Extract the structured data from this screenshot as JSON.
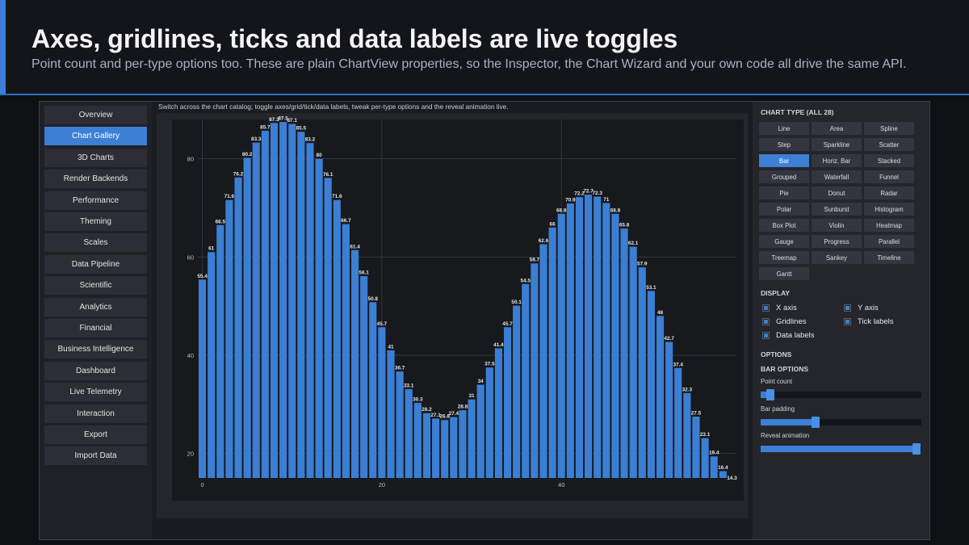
{
  "header": {
    "title": "Axes, gridlines, ticks and data labels are live toggles",
    "subtitle": "Point count and per-type options too. These are plain ChartView properties, so the Inspector, the Chart Wizard and your own code all drive the same API."
  },
  "nav": {
    "items": [
      "Overview",
      "Chart Gallery",
      "3D Charts",
      "Render Backends",
      "Performance",
      "Theming",
      "Scales",
      "Data Pipeline",
      "Scientific",
      "Analytics",
      "Financial",
      "Business Intelligence",
      "Dashboard",
      "Live Telemetry",
      "Interaction",
      "Export",
      "Import Data"
    ],
    "active_index": 1
  },
  "main": {
    "description": "Switch across the chart catalog; toggle axes/grid/tick/data labels, tweak per-type options and the reveal animation live."
  },
  "panel": {
    "chart_type_title": "CHART TYPE (ALL 28)",
    "chart_types": [
      "Line",
      "Area",
      "Spline",
      "Step",
      "Sparkline",
      "Scatter",
      "Bar",
      "Horiz. Bar",
      "Stacked",
      "Grouped",
      "Waterfall",
      "Funnel",
      "Pie",
      "Donut",
      "Radar",
      "Polar",
      "Sunburst",
      "Histogram",
      "Box Plot",
      "Violin",
      "Heatmap",
      "Gauge",
      "Progress",
      "Parallel",
      "Treemap",
      "Sankey",
      "Timeline",
      "Gantt"
    ],
    "active_type": "Bar",
    "display_title": "DISPLAY",
    "display": [
      {
        "label": "X axis",
        "checked": true
      },
      {
        "label": "Y axis",
        "checked": true
      },
      {
        "label": "Gridlines",
        "checked": true
      },
      {
        "label": "Tick labels",
        "checked": true
      },
      {
        "label": "Data labels",
        "checked": true
      }
    ],
    "options_title": "OPTIONS",
    "bar_options_title": "BAR OPTIONS",
    "sliders": [
      {
        "label": "Point count",
        "value": 0.06
      },
      {
        "label": "Bar padding",
        "value": 0.34
      },
      {
        "label": "Reveal animation",
        "value": 0.97
      }
    ]
  },
  "colors": {
    "accent": "#3d7fd4",
    "bar": "#3b7fd4",
    "background": "#1a1c21"
  },
  "chart_data": {
    "type": "bar",
    "x": [
      0,
      1,
      2,
      3,
      4,
      5,
      6,
      7,
      8,
      9,
      10,
      11,
      12,
      13,
      14,
      15,
      16,
      17,
      18,
      19,
      20,
      21,
      22,
      23,
      24,
      25,
      26,
      27,
      28,
      29,
      30,
      31,
      32,
      33,
      34,
      35,
      36,
      37,
      38,
      39,
      40,
      41,
      42,
      43,
      44,
      45,
      46,
      47,
      48,
      49,
      50,
      51,
      52,
      53,
      54,
      55,
      56,
      57,
      58,
      59
    ],
    "values": [
      55.4,
      61,
      66.5,
      71.6,
      76.2,
      80.2,
      83.3,
      85.7,
      87.3,
      87.5,
      87.1,
      85.5,
      83.2,
      80,
      76.1,
      71.6,
      66.7,
      61.4,
      56.1,
      50.8,
      45.7,
      41,
      36.7,
      33.1,
      30.3,
      28.2,
      27.1,
      26.8,
      27.4,
      28.8,
      31,
      34,
      37.5,
      41.4,
      45.7,
      50.1,
      54.5,
      58.7,
      62.6,
      66,
      68.8,
      70.9,
      72.2,
      72.7,
      72.3,
      71,
      68.8,
      65.8,
      62.1,
      57.9,
      53.1,
      48,
      42.7,
      37.4,
      32.3,
      27.5,
      23.1,
      19.4,
      16.4,
      14.3
    ],
    "x_ticks": [
      0,
      20,
      40
    ],
    "y_ticks": [
      20,
      40,
      60,
      80
    ],
    "ylim": [
      15,
      88
    ],
    "grid": true,
    "data_labels": true
  }
}
